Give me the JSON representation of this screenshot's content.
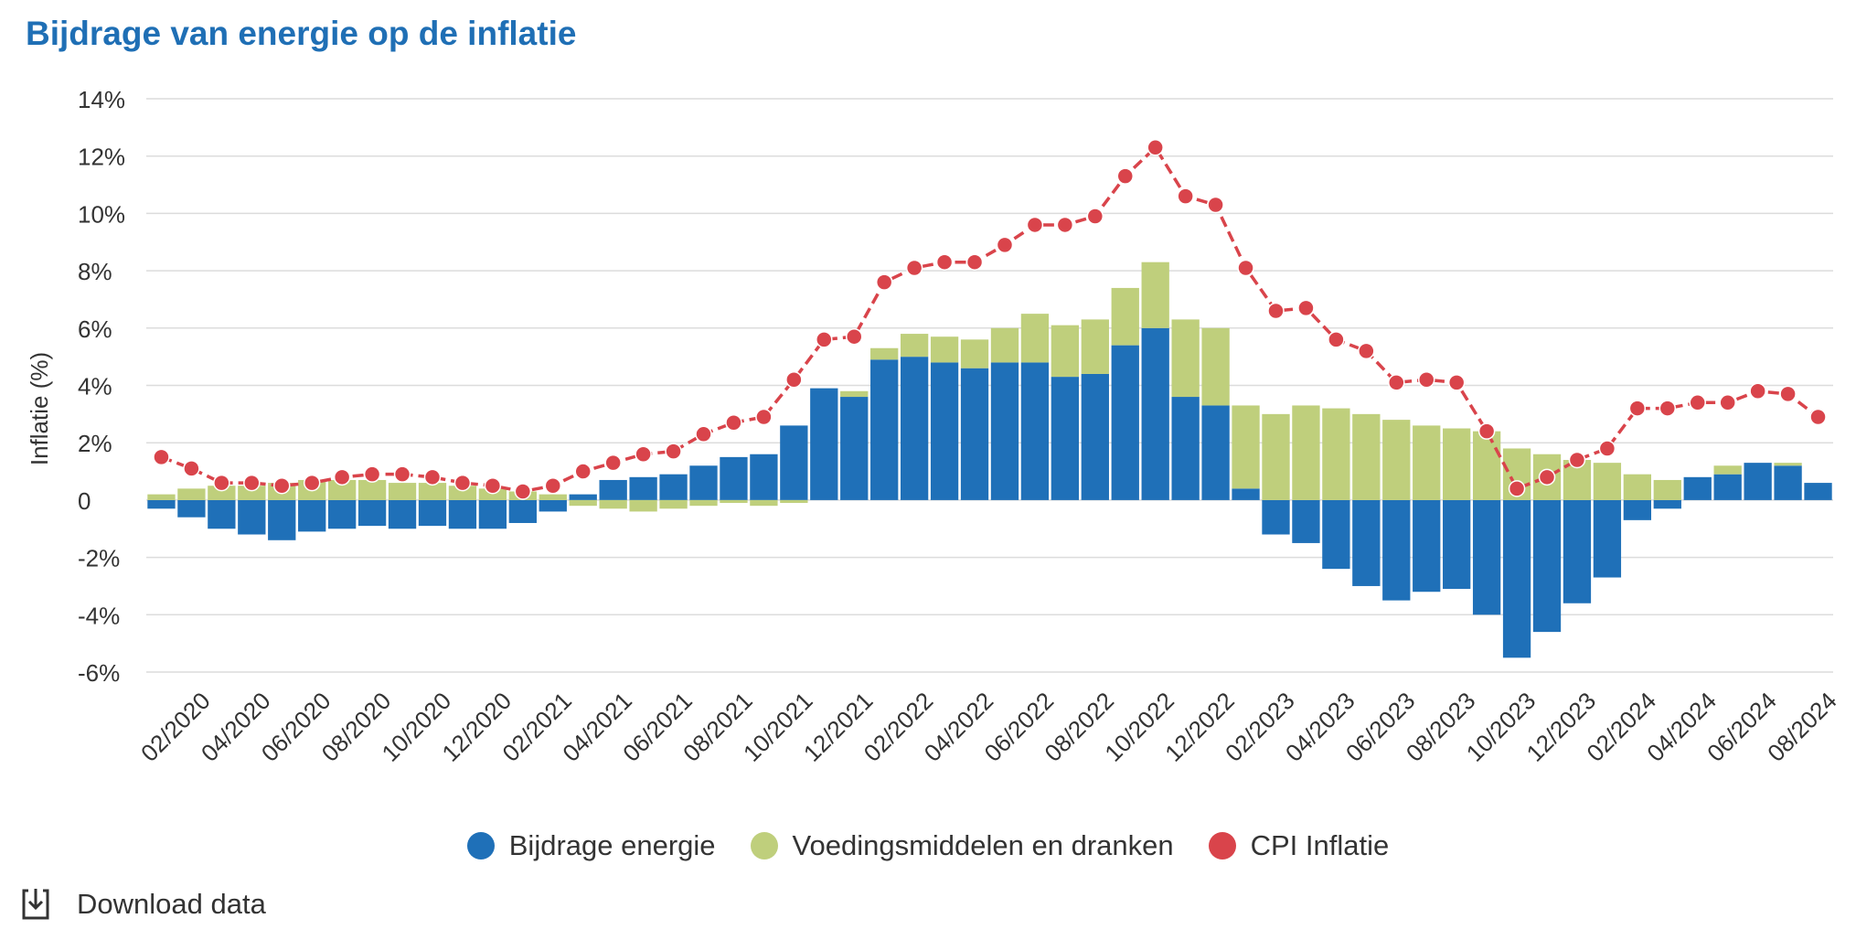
{
  "colors": {
    "energy": "#1f70b8",
    "food": "#bfcf7c",
    "cpi": "#d9444b",
    "title": "#1f6fb5"
  },
  "download_label": "Download data",
  "chart_data": {
    "type": "bar",
    "title": "Bijdrage van energie op de inflatie",
    "xlabel": "",
    "ylabel": "Inflatie (%)",
    "ylim": [
      -6,
      14
    ],
    "yticks": [
      14,
      12,
      10,
      8,
      6,
      4,
      2,
      0,
      -2,
      -4,
      -6
    ],
    "ytick_labels": [
      "14%",
      "12%",
      "10%",
      "8%",
      "6%",
      "4%",
      "2%",
      "0",
      "-2%",
      "-4%",
      "-6%"
    ],
    "stacked": true,
    "categories": [
      "01/2020",
      "02/2020",
      "03/2020",
      "04/2020",
      "05/2020",
      "06/2020",
      "07/2020",
      "08/2020",
      "09/2020",
      "10/2020",
      "11/2020",
      "12/2020",
      "01/2021",
      "02/2021",
      "03/2021",
      "04/2021",
      "05/2021",
      "06/2021",
      "07/2021",
      "08/2021",
      "09/2021",
      "10/2021",
      "11/2021",
      "12/2021",
      "01/2022",
      "02/2022",
      "03/2022",
      "04/2022",
      "05/2022",
      "06/2022",
      "07/2022",
      "08/2022",
      "09/2022",
      "10/2022",
      "11/2022",
      "12/2022",
      "01/2023",
      "02/2023",
      "03/2023",
      "04/2023",
      "05/2023",
      "06/2023",
      "07/2023",
      "08/2023",
      "09/2023",
      "10/2023",
      "11/2023",
      "12/2023",
      "01/2024",
      "02/2024",
      "03/2024",
      "04/2024",
      "05/2024",
      "06/2024",
      "07/2024",
      "08/2024"
    ],
    "xtick_labels": [
      "02/2020",
      "04/2020",
      "06/2020",
      "08/2020",
      "10/2020",
      "12/2020",
      "02/2021",
      "04/2021",
      "06/2021",
      "08/2021",
      "10/2021",
      "12/2021",
      "02/2022",
      "04/2022",
      "06/2022",
      "08/2022",
      "10/2022",
      "12/2022",
      "02/2023",
      "04/2023",
      "06/2023",
      "08/2023",
      "10/2023",
      "12/2023",
      "02/2024",
      "04/2024",
      "06/2024",
      "08/2024"
    ],
    "series": [
      {
        "name": "Bijdrage energie",
        "type": "bar",
        "values": [
          -0.3,
          -0.6,
          -1.0,
          -1.2,
          -1.4,
          -1.1,
          -1.0,
          -0.9,
          -1.0,
          -0.9,
          -1.0,
          -1.0,
          -0.8,
          -0.4,
          0.2,
          0.7,
          0.8,
          0.9,
          1.2,
          1.5,
          1.6,
          2.6,
          3.9,
          3.6,
          4.9,
          5.0,
          4.8,
          4.6,
          4.8,
          4.8,
          4.3,
          4.4,
          5.4,
          6.0,
          3.6,
          3.3,
          0.4,
          -1.2,
          -1.5,
          -2.4,
          -3.0,
          -3.5,
          -3.2,
          -3.1,
          -4.0,
          -5.5,
          -4.6,
          -3.6,
          -2.7,
          -0.7,
          -0.3,
          0.8,
          0.9,
          1.3,
          1.2,
          0.6
        ]
      },
      {
        "name": "Voedingsmiddelen en dranken",
        "type": "bar",
        "values": [
          0.2,
          0.4,
          0.5,
          0.5,
          0.6,
          0.7,
          0.7,
          0.7,
          0.6,
          0.6,
          0.5,
          0.4,
          0.3,
          0.2,
          -0.2,
          -0.3,
          -0.4,
          -0.3,
          -0.2,
          -0.1,
          -0.2,
          -0.1,
          0.0,
          0.2,
          0.4,
          0.8,
          0.9,
          1.0,
          1.2,
          1.7,
          1.8,
          1.9,
          2.0,
          2.3,
          2.7,
          2.7,
          2.9,
          3.0,
          3.3,
          3.2,
          3.0,
          2.8,
          2.6,
          2.5,
          2.4,
          1.8,
          1.6,
          1.4,
          1.3,
          0.9,
          0.7,
          0.0,
          0.3,
          0.0,
          0.1,
          0.0
        ]
      },
      {
        "name": "CPI Inflatie",
        "type": "line",
        "values": [
          1.5,
          1.1,
          0.6,
          0.6,
          0.5,
          0.6,
          0.8,
          0.9,
          0.9,
          0.8,
          0.6,
          0.5,
          0.3,
          0.5,
          1.0,
          1.3,
          1.6,
          1.7,
          2.3,
          2.7,
          2.9,
          4.2,
          5.6,
          5.7,
          7.6,
          8.1,
          8.3,
          8.3,
          8.9,
          9.6,
          9.6,
          9.9,
          11.3,
          12.3,
          10.6,
          10.3,
          8.1,
          6.6,
          6.7,
          5.6,
          5.2,
          4.1,
          4.2,
          4.1,
          2.4,
          0.4,
          0.8,
          1.4,
          1.8,
          3.2,
          3.2,
          3.4,
          3.4,
          3.8,
          3.7,
          2.9
        ]
      }
    ],
    "legend": [
      "Bijdrage energie",
      "Voedingsmiddelen en dranken",
      "CPI Inflatie"
    ],
    "legend_position": "bottom-center",
    "grid": true
  }
}
